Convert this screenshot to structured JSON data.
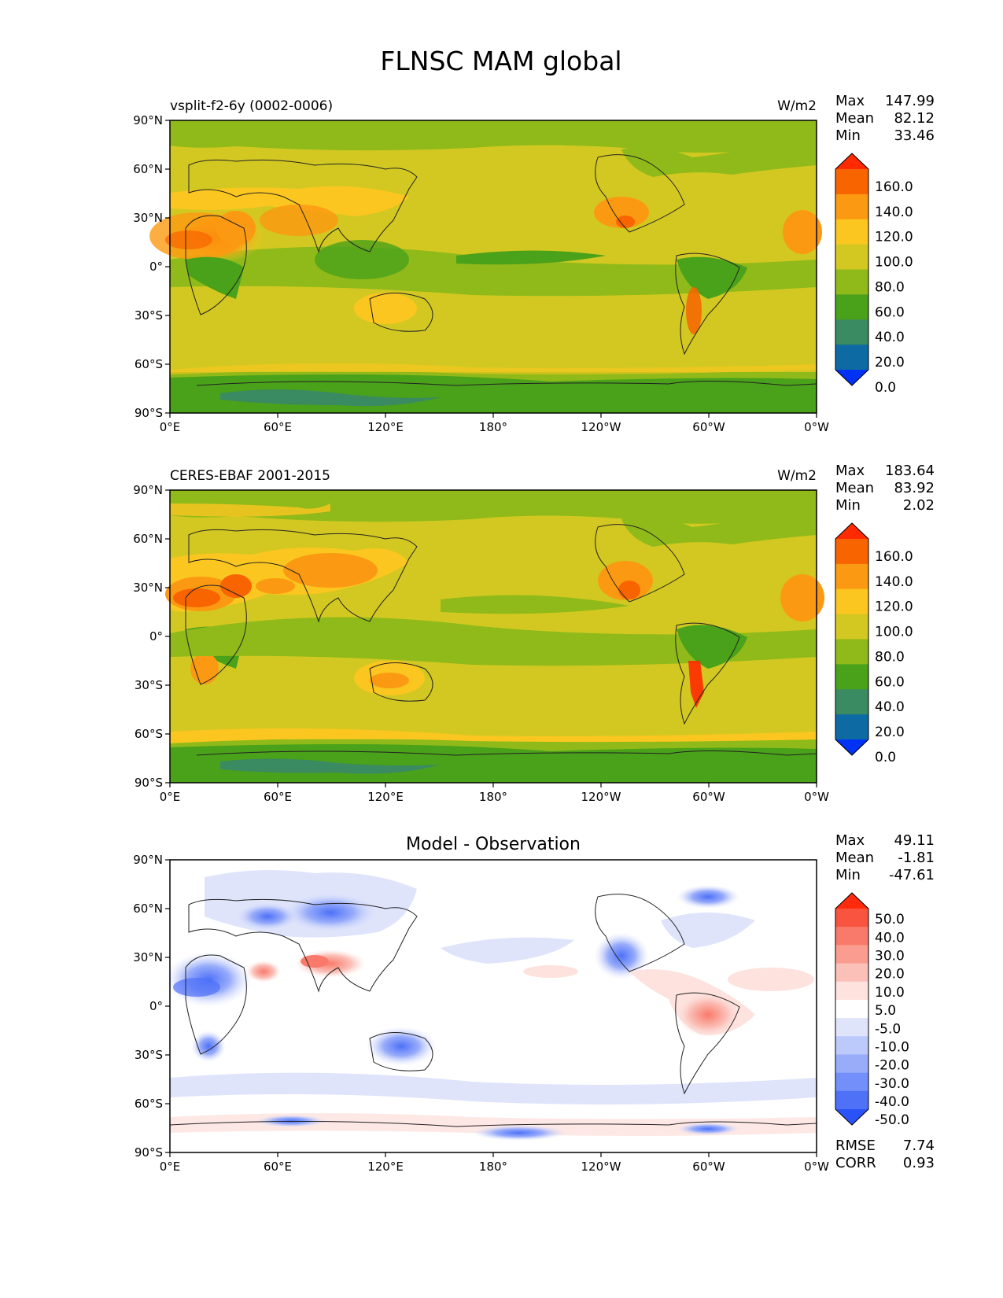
{
  "figure_title": "FLNSC MAM global",
  "chart_data": [
    {
      "type": "heatmap",
      "title_left": "vsplit-f2-6y (0002-0006)",
      "title_center": "",
      "units": "W/m2",
      "stats": [
        {
          "label": "Max",
          "value": "147.99"
        },
        {
          "label": "Mean",
          "value": "82.12"
        },
        {
          "label": "Min",
          "value": "33.46"
        }
      ],
      "footer_stats": [],
      "xticks": [
        "0°E",
        "60°E",
        "120°E",
        "180°",
        "120°W",
        "60°W",
        "0°W"
      ],
      "yticks": [
        "90°N",
        "60°N",
        "30°N",
        "0°",
        "30°S",
        "60°S",
        "90°S"
      ],
      "xlim": [
        0,
        360
      ],
      "ylim": [
        -90,
        90
      ],
      "colorbar": {
        "labels": [
          "160.0",
          "140.0",
          "120.0",
          "100.0",
          "80.0",
          "60.0",
          "40.0",
          "20.0",
          "0.0"
        ],
        "colors": [
          "#ff2a00",
          "#f86400",
          "#fb9a12",
          "#fbc61f",
          "#d2c821",
          "#8fba19",
          "#4aa11a",
          "#3a8a62",
          "#0d6aa2",
          "#0032f5"
        ]
      }
    },
    {
      "type": "heatmap",
      "title_left": "CERES-EBAF 2001-2015",
      "title_center": "",
      "units": "W/m2",
      "stats": [
        {
          "label": "Max",
          "value": "183.64"
        },
        {
          "label": "Mean",
          "value": "83.92"
        },
        {
          "label": "Min",
          "value": "2.02"
        }
      ],
      "footer_stats": [],
      "xticks": [
        "0°E",
        "60°E",
        "120°E",
        "180°",
        "120°W",
        "60°W",
        "0°W"
      ],
      "yticks": [
        "90°N",
        "60°N",
        "30°N",
        "0°",
        "30°S",
        "60°S",
        "90°S"
      ],
      "xlim": [
        0,
        360
      ],
      "ylim": [
        -90,
        90
      ],
      "colorbar": {
        "labels": [
          "160.0",
          "140.0",
          "120.0",
          "100.0",
          "80.0",
          "60.0",
          "40.0",
          "20.0",
          "0.0"
        ],
        "colors": [
          "#ff2a00",
          "#f86400",
          "#fb9a12",
          "#fbc61f",
          "#d2c821",
          "#8fba19",
          "#4aa11a",
          "#3a8a62",
          "#0d6aa2",
          "#0032f5"
        ]
      }
    },
    {
      "type": "heatmap",
      "title_left": "",
      "title_center": "Model - Observation",
      "units": "",
      "stats": [
        {
          "label": "Max",
          "value": "49.11"
        },
        {
          "label": "Mean",
          "value": "-1.81"
        },
        {
          "label": "Min",
          "value": "-47.61"
        }
      ],
      "footer_stats": [
        {
          "label": "RMSE",
          "value": "7.74"
        },
        {
          "label": "CORR",
          "value": "0.93"
        }
      ],
      "xticks": [
        "0°E",
        "60°E",
        "120°E",
        "180°",
        "120°W",
        "60°W",
        "0°W"
      ],
      "yticks": [
        "90°N",
        "60°N",
        "30°N",
        "0°",
        "30°S",
        "60°S",
        "90°S"
      ],
      "xlim": [
        0,
        360
      ],
      "ylim": [
        -90,
        90
      ],
      "colorbar": {
        "labels": [
          "50.0",
          "40.0",
          "30.0",
          "20.0",
          "10.0",
          "5.0",
          "-5.0",
          "-10.0",
          "-20.0",
          "-30.0",
          "-40.0",
          "-50.0"
        ],
        "colors": [
          "#ff2a0c",
          "#f9543f",
          "#f97a6a",
          "#fa9c90",
          "#fbc0b8",
          "#fde2de",
          "#ffffff",
          "#dfe4fb",
          "#bccafb",
          "#98acfa",
          "#738ff9",
          "#4e71f8",
          "#2a53f7"
        ]
      }
    }
  ]
}
